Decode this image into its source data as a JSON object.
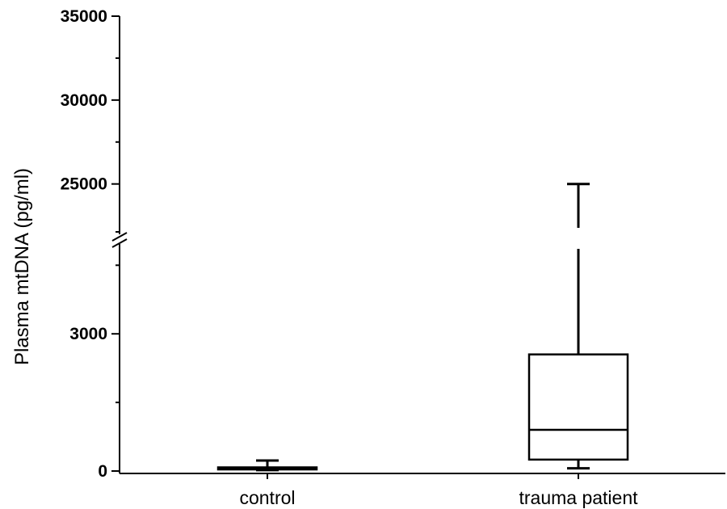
{
  "chart_data": {
    "type": "box",
    "title": "",
    "xlabel": "",
    "ylabel": "Plasma mtDNA (pg/ml)",
    "categories": [
      "control",
      "trauma patient"
    ],
    "y_axis": {
      "broken": true,
      "lower_segment": {
        "range": [
          0,
          5000
        ],
        "ticks": [
          0,
          3000
        ]
      },
      "upper_segment": {
        "range": [
          22000,
          35000
        ],
        "ticks": [
          25000,
          30000,
          35000
        ]
      }
    },
    "y_tick_labels": [
      "0",
      "3000",
      "25000",
      "30000",
      "35000"
    ],
    "boxes": [
      {
        "category": "control",
        "min": 20,
        "q1": 35,
        "median": 60,
        "q3": 80,
        "max": 230
      },
      {
        "category": "trauma patient",
        "min": 60,
        "q1": 250,
        "median": 900,
        "q3": 2550,
        "max": 25000
      }
    ]
  }
}
